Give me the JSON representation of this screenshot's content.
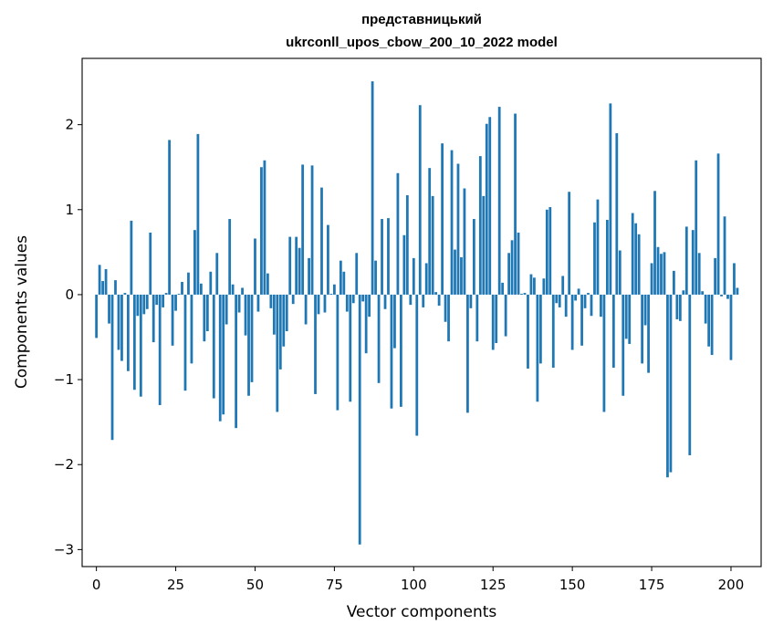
{
  "chart_data": {
    "type": "bar",
    "title_line1": "представницький",
    "title_line2": "ukrconll_upos_cbow_200_10_2022 model",
    "xlabel": "Vector components",
    "ylabel": "Components values",
    "xlim": [
      -4.5,
      209.5
    ],
    "ylim": [
      -3.2,
      2.78
    ],
    "xticks": [
      0,
      25,
      50,
      75,
      100,
      125,
      150,
      175,
      200
    ],
    "yticks": [
      -3,
      -2,
      -1,
      0,
      1,
      2
    ],
    "xtick_labels": [
      "0",
      "25",
      "50",
      "75",
      "100",
      "125",
      "150",
      "175",
      "200"
    ],
    "ytick_labels": [
      "−3",
      "−2",
      "−1",
      "0",
      "1",
      "2"
    ],
    "bar_color": "#1f77b4",
    "grid": false,
    "values": [
      -0.51,
      0.35,
      0.16,
      0.3,
      -0.34,
      -1.71,
      0.17,
      -0.65,
      -0.78,
      0.02,
      -0.9,
      0.87,
      -1.12,
      -0.25,
      -1.2,
      -0.23,
      -0.17,
      0.73,
      -0.56,
      -0.12,
      -1.3,
      -0.15,
      0.02,
      1.82,
      -0.6,
      -0.19,
      0.01,
      0.15,
      -1.13,
      0.26,
      -0.81,
      0.76,
      1.89,
      0.13,
      -0.55,
      -0.43,
      0.27,
      -1.22,
      0.49,
      -1.49,
      -1.41,
      -0.35,
      0.89,
      0.12,
      -1.57,
      -0.21,
      0.08,
      -0.48,
      -1.19,
      -1.03,
      0.66,
      -0.2,
      1.5,
      1.58,
      0.25,
      -0.16,
      -0.47,
      -1.38,
      -0.88,
      -0.61,
      -0.43,
      0.68,
      -0.11,
      0.68,
      0.55,
      1.53,
      -0.35,
      0.43,
      1.52,
      -1.17,
      -0.23,
      1.26,
      -0.21,
      0.82,
      0.01,
      0.12,
      -1.36,
      0.4,
      0.27,
      -0.2,
      -1.26,
      -0.1,
      0.49,
      -2.94,
      -0.08,
      -0.69,
      -0.26,
      2.51,
      0.4,
      -1.04,
      0.89,
      -0.17,
      0.9,
      -1.34,
      -0.63,
      1.43,
      -1.32,
      0.7,
      1.17,
      -0.12,
      0.43,
      -1.66,
      2.23,
      -0.15,
      0.37,
      1.49,
      1.16,
      0.03,
      -0.13,
      1.78,
      -0.32,
      -0.55,
      1.7,
      0.53,
      1.54,
      0.44,
      1.25,
      -1.39,
      -0.16,
      0.89,
      -0.55,
      1.63,
      1.16,
      2.01,
      2.09,
      -0.65,
      -0.57,
      2.21,
      0.14,
      -0.49,
      0.49,
      0.64,
      2.13,
      0.73,
      0.01,
      0.02,
      -0.87,
      0.24,
      0.2,
      -1.26,
      -0.81,
      0.19,
      1.0,
      1.03,
      -0.86,
      -0.1,
      -0.15,
      0.22,
      -0.26,
      1.21,
      -0.65,
      -0.07,
      0.07,
      -0.6,
      -0.16,
      0.02,
      -0.25,
      0.85,
      1.12,
      -0.26,
      -1.38,
      0.88,
      2.25,
      -0.86,
      1.9,
      0.52,
      -1.19,
      -0.52,
      -0.58,
      0.96,
      0.84,
      0.71,
      -0.81,
      -0.36,
      -0.92,
      0.37,
      1.22,
      0.56,
      0.48,
      0.5,
      -2.15,
      -2.09,
      0.28,
      -0.29,
      -0.31,
      0.05,
      0.8,
      -1.89,
      0.76,
      1.58,
      0.49,
      0.04,
      -0.34,
      -0.61,
      -0.71,
      0.43,
      1.66,
      -0.02,
      0.92,
      -0.05,
      -0.77,
      0.37,
      0.08
    ]
  }
}
